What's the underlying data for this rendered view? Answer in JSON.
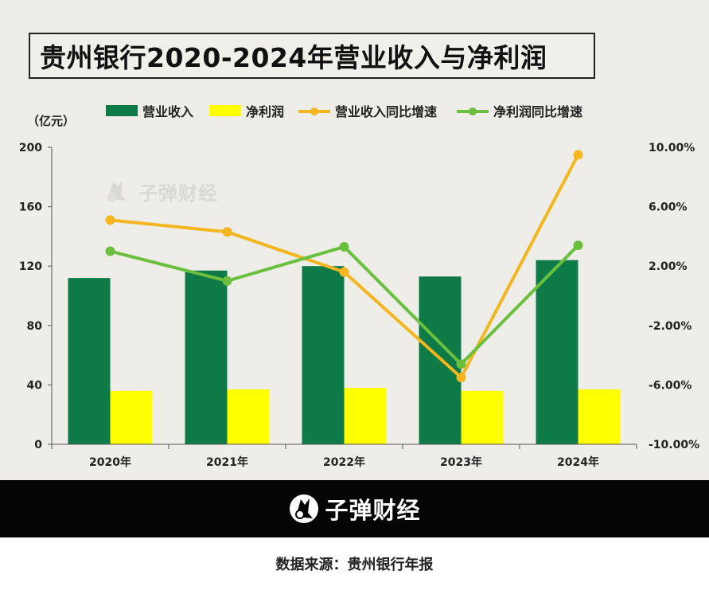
{
  "title": "贵州银行2020-2024年营业收入与净利润",
  "unit_label": "（亿元）",
  "watermark_text": "子弹财经",
  "footer": {
    "brand": "子弹财经",
    "source": "数据来源：贵州银行年报"
  },
  "colors": {
    "revenue_bar": "#0e7a47",
    "profit_bar": "#ffff00",
    "revenue_growth_line": "#f3b61f",
    "profit_growth_line": "#6abf3f",
    "background": "#eeede8"
  },
  "chart_data": {
    "type": "bar",
    "categories": [
      "2020年",
      "2021年",
      "2022年",
      "2023年",
      "2024年"
    ],
    "series": [
      {
        "name": "营业收入",
        "type": "bar",
        "axis": "left",
        "values": [
          112,
          117,
          120,
          113,
          124
        ]
      },
      {
        "name": "净利润",
        "type": "bar",
        "axis": "left",
        "values": [
          36,
          37,
          38,
          36,
          37
        ]
      },
      {
        "name": "营业收入同比增速",
        "type": "line",
        "axis": "right",
        "values": [
          5.1,
          4.3,
          1.6,
          -5.5,
          9.5
        ]
      },
      {
        "name": "净利润同比增速",
        "type": "line",
        "axis": "right",
        "values": [
          3.0,
          1.0,
          3.3,
          -4.6,
          3.4
        ]
      }
    ],
    "ylim_left": [
      0,
      200
    ],
    "yticks_left": [
      "0",
      "40",
      "80",
      "120",
      "160",
      "200"
    ],
    "ylim_right": [
      -10,
      10
    ],
    "yticks_right": [
      "-10.00%",
      "-6.00%",
      "-2.00%",
      "2.00%",
      "6.00%",
      "10.00%"
    ],
    "legend_position": "top",
    "grid": false
  }
}
